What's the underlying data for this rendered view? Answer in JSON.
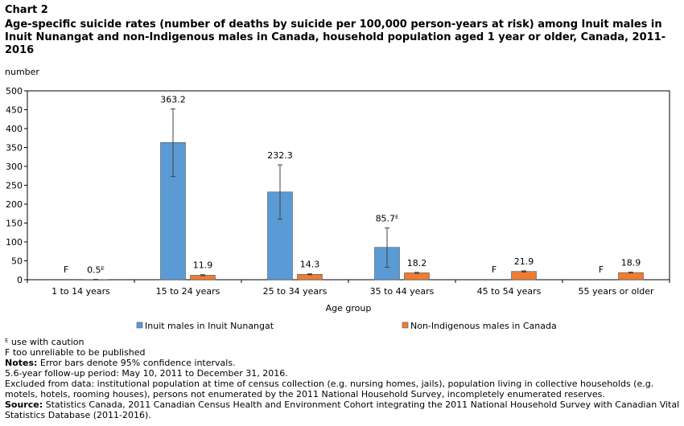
{
  "chart_label": "Chart 2",
  "title": "Age-specific suicide rates (number of deaths by suicide per 100,000 person-years at risk) among Inuit males in Inuit Nunangat and non-Indigenous males in Canada, household population aged 1 year or older, Canada, 2011-2016",
  "colors": {
    "series1": "#5b9bd5",
    "series2": "#ed7d31",
    "axis": "#000000",
    "error_bar": "#404040"
  },
  "chart_data": {
    "type": "bar",
    "title": "",
    "ylabel": "number",
    "xlabel": "Age group",
    "ylim": [
      0,
      500
    ],
    "yticks": [
      0,
      50,
      100,
      150,
      200,
      250,
      300,
      350,
      400,
      450,
      500
    ],
    "grid": false,
    "legend_position": "bottom",
    "categories": [
      "1 to 14 years",
      "15 to 24 years",
      "25 to 34 years",
      "35 to 44 years",
      "45 to 54 years",
      "55 years or older"
    ],
    "series": [
      {
        "name": "Inuit males in Inuit Nunangat",
        "values": [
          null,
          363.2,
          232.3,
          85.7,
          null,
          null
        ],
        "labels": [
          "F",
          "363.2",
          "232.3",
          "85.7ᴱ",
          "F",
          "F"
        ],
        "error_low": [
          null,
          273,
          160,
          33,
          null,
          null
        ],
        "error_high": [
          null,
          452,
          304,
          137,
          null,
          null
        ]
      },
      {
        "name": "Non-Indigenous males in Canada",
        "values": [
          0.5,
          11.9,
          14.3,
          18.2,
          21.9,
          18.9
        ],
        "labels": [
          "0.5ᴱ",
          "11.9",
          "14.3",
          "18.2",
          "21.9",
          "18.9"
        ],
        "error_low": [
          0.2,
          10.6,
          13.0,
          16.8,
          20.4,
          17.8
        ],
        "error_high": [
          0.9,
          13.3,
          15.6,
          19.6,
          23.4,
          20.0
        ]
      }
    ]
  },
  "notes": {
    "e_note": "ᴱ use with caution",
    "f_note": "F too unreliable to be published",
    "notes_label": "Notes:",
    "notes_text": " Error bars denote 95% confidence intervals.",
    "followup": "5.6-year follow-up period: May 10, 2011 to December 31, 2016.",
    "excluded": "Excluded from data: institutional population at time of census collection (e.g. nursing homes, jails), population living in collective households (e.g. motels, hotels, rooming houses), persons not enumerated by the 2011 National Household Survey, incompletely enumerated reserves.",
    "source_label": "Source:",
    "source_text": " Statistics Canada, 2011 Canadian Census Health and Environment Cohort integrating the 2011 National Household Survey with Canadian Vital Statistics Database (2011-2016)."
  }
}
